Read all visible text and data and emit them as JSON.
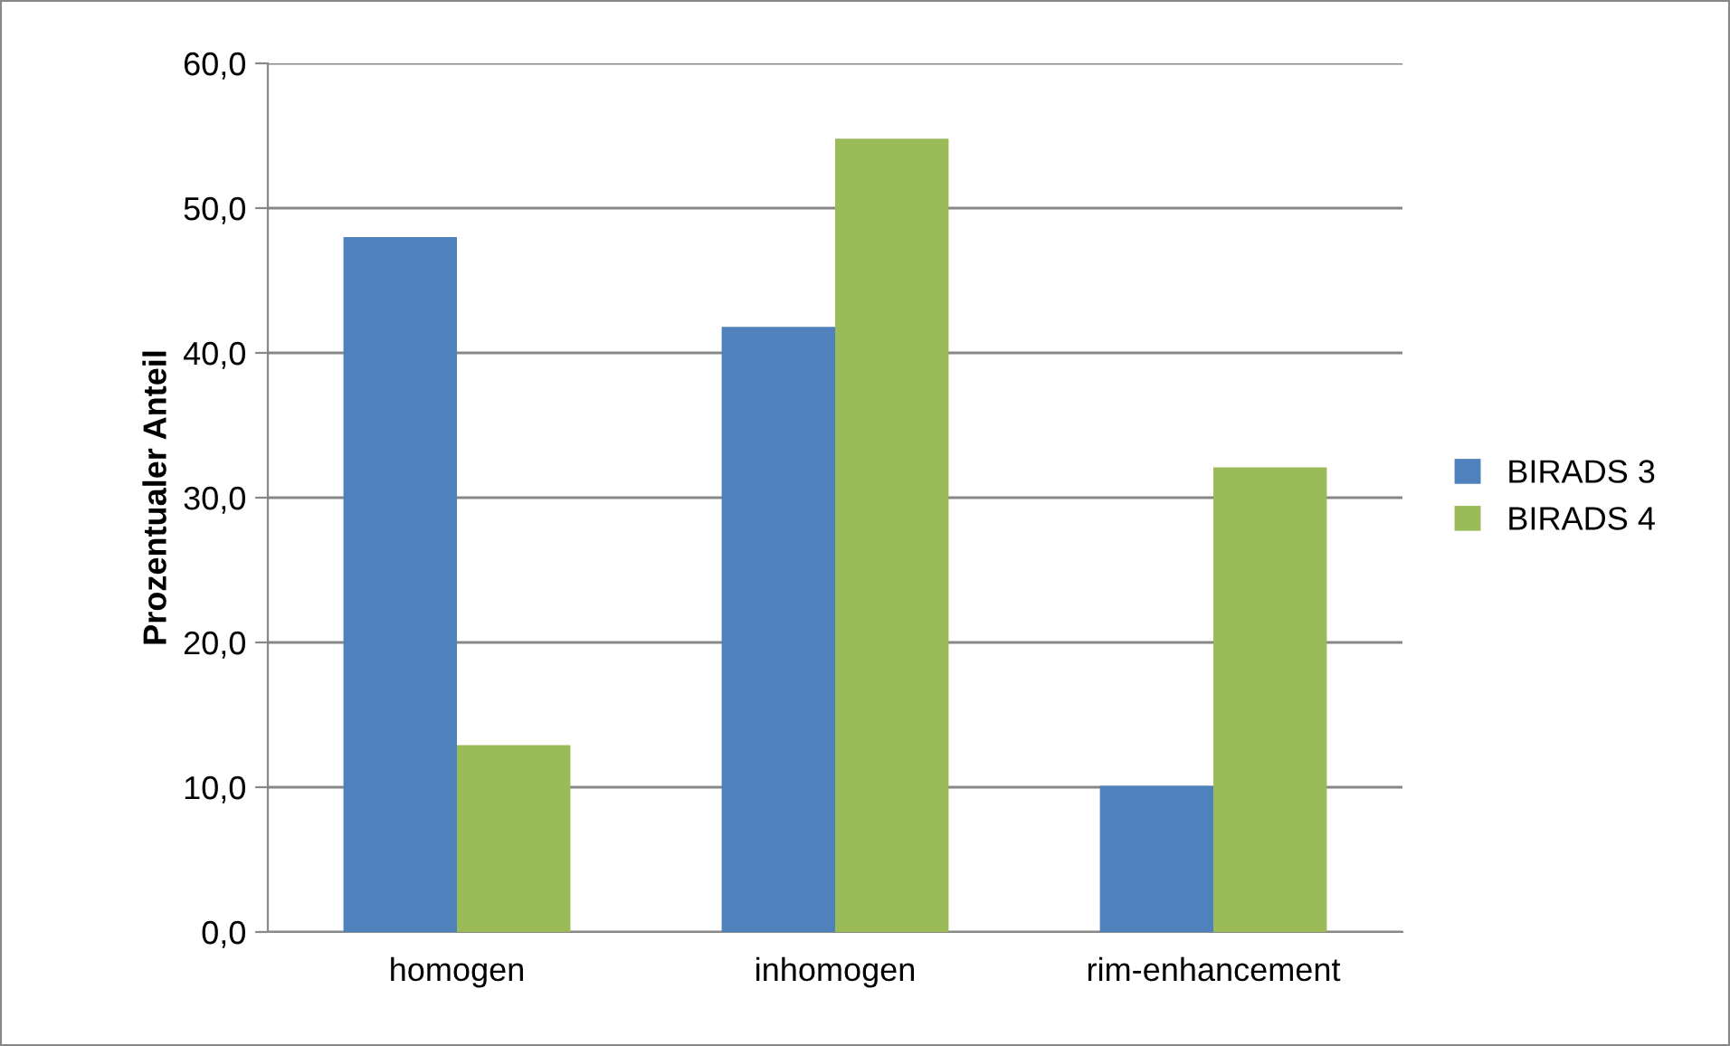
{
  "chart_data": {
    "type": "bar",
    "ylabel": "Prozentualer Anteil",
    "categories": [
      "homogen",
      "inhomogen",
      "rim-enhancement"
    ],
    "series": [
      {
        "name": "BIRADS 3",
        "color": "#4f81bd",
        "values": [
          48.0,
          41.8,
          10.1
        ]
      },
      {
        "name": "BIRADS 4",
        "color": "#9bbb59",
        "values": [
          12.9,
          54.8,
          32.1
        ]
      }
    ],
    "ylim": [
      0,
      60
    ],
    "yticks": [
      {
        "value": 0,
        "label": "0,0"
      },
      {
        "value": 10,
        "label": "10,0"
      },
      {
        "value": 20,
        "label": "20,0"
      },
      {
        "value": 30,
        "label": "30,0"
      },
      {
        "value": 40,
        "label": "40,0"
      },
      {
        "value": 50,
        "label": "50,0"
      },
      {
        "value": 60,
        "label": "60,0"
      }
    ],
    "grid": "y",
    "legend": "right"
  }
}
